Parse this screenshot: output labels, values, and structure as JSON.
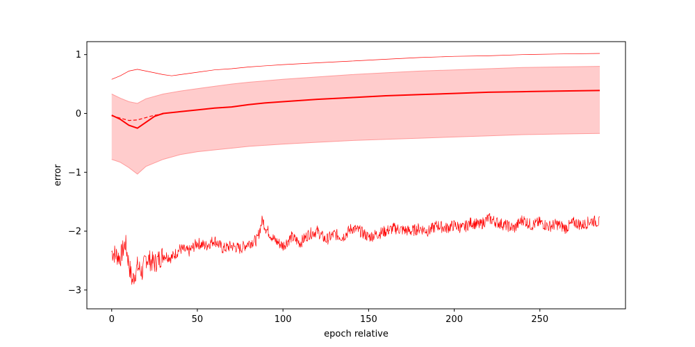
{
  "chart_data": {
    "type": "line",
    "title": "",
    "xlabel": "epoch relative",
    "ylabel": "error",
    "xlim": [
      -14.5,
      300
    ],
    "ylim": [
      -3.32,
      1.22
    ],
    "grid": false,
    "x_ticks": [
      0,
      50,
      100,
      150,
      200,
      250
    ],
    "y_ticks": [
      1,
      0,
      -1,
      -2,
      -3
    ],
    "y_tick_labels": [
      "1",
      "0",
      "−1",
      "−2",
      "−3"
    ],
    "colors": {
      "line": "#ff0000",
      "band_fill": "#ffcccc",
      "band_edge": "#ff9a9a"
    },
    "series": [
      {
        "role": "upper",
        "style": "thin",
        "x": [
          0,
          5,
          10,
          15,
          20,
          25,
          30,
          35,
          40,
          50,
          60,
          70,
          80,
          90,
          100,
          120,
          140,
          160,
          180,
          200,
          220,
          240,
          260,
          285
        ],
        "y": [
          0.58,
          0.64,
          0.72,
          0.75,
          0.72,
          0.69,
          0.66,
          0.64,
          0.66,
          0.7,
          0.74,
          0.76,
          0.79,
          0.81,
          0.83,
          0.86,
          0.89,
          0.92,
          0.95,
          0.97,
          0.98,
          1.0,
          1.01,
          1.02
        ]
      },
      {
        "role": "band",
        "x": [
          0,
          5,
          10,
          15,
          20,
          30,
          40,
          50,
          60,
          70,
          80,
          100,
          120,
          140,
          160,
          180,
          200,
          220,
          240,
          260,
          285
        ],
        "upper": [
          0.33,
          0.26,
          0.2,
          0.17,
          0.25,
          0.33,
          0.38,
          0.42,
          0.46,
          0.5,
          0.53,
          0.58,
          0.62,
          0.66,
          0.69,
          0.72,
          0.74,
          0.76,
          0.78,
          0.79,
          0.8
        ],
        "lower": [
          -0.78,
          -0.83,
          -0.92,
          -1.03,
          -0.9,
          -0.78,
          -0.7,
          -0.65,
          -0.62,
          -0.59,
          -0.56,
          -0.52,
          -0.49,
          -0.46,
          -0.44,
          -0.42,
          -0.4,
          -0.38,
          -0.36,
          -0.35,
          -0.34
        ]
      },
      {
        "role": "mean",
        "style": "thick",
        "x": [
          0,
          5,
          10,
          15,
          20,
          25,
          30,
          40,
          50,
          60,
          70,
          80,
          90,
          100,
          120,
          140,
          160,
          180,
          200,
          220,
          240,
          260,
          285
        ],
        "y": [
          -0.03,
          -0.1,
          -0.2,
          -0.25,
          -0.15,
          -0.05,
          0.0,
          0.03,
          0.06,
          0.09,
          0.11,
          0.15,
          0.18,
          0.2,
          0.24,
          0.27,
          0.3,
          0.32,
          0.34,
          0.36,
          0.37,
          0.38,
          0.39
        ]
      },
      {
        "role": "median",
        "style": "dashed",
        "x": [
          0,
          5,
          10,
          15,
          20,
          25,
          30
        ],
        "y": [
          -0.04,
          -0.08,
          -0.12,
          -0.11,
          -0.07,
          -0.03,
          -0.01
        ]
      },
      {
        "role": "lower",
        "style": "noisy",
        "x": [
          0,
          5,
          8,
          10,
          12,
          15,
          18,
          20,
          25,
          30,
          35,
          40,
          45,
          50,
          55,
          60,
          65,
          70,
          75,
          80,
          85,
          88,
          90,
          95,
          100,
          105,
          110,
          115,
          120,
          125,
          130,
          135,
          140,
          145,
          150,
          155,
          160,
          165,
          170,
          175,
          180,
          185,
          190,
          195,
          200,
          205,
          210,
          215,
          220,
          225,
          230,
          235,
          240,
          245,
          250,
          255,
          260,
          265,
          270,
          275,
          280,
          285
        ],
        "y": [
          -2.35,
          -2.45,
          -2.2,
          -2.55,
          -2.85,
          -2.6,
          -2.7,
          -2.45,
          -2.55,
          -2.4,
          -2.45,
          -2.3,
          -2.35,
          -2.2,
          -2.25,
          -2.15,
          -2.3,
          -2.25,
          -2.3,
          -2.2,
          -2.15,
          -1.8,
          -1.95,
          -2.15,
          -2.25,
          -2.1,
          -2.2,
          -2.05,
          -2.0,
          -2.15,
          -2.05,
          -2.1,
          -1.95,
          -2.0,
          -2.1,
          -2.05,
          -2.0,
          -1.95,
          -1.98,
          -2.0,
          -1.95,
          -2.0,
          -1.9,
          -1.95,
          -1.9,
          -1.95,
          -1.85,
          -1.9,
          -1.78,
          -1.85,
          -1.9,
          -1.95,
          -1.8,
          -1.9,
          -1.85,
          -1.92,
          -1.88,
          -1.95,
          -1.85,
          -1.9,
          -1.82,
          -1.85
        ]
      }
    ]
  }
}
